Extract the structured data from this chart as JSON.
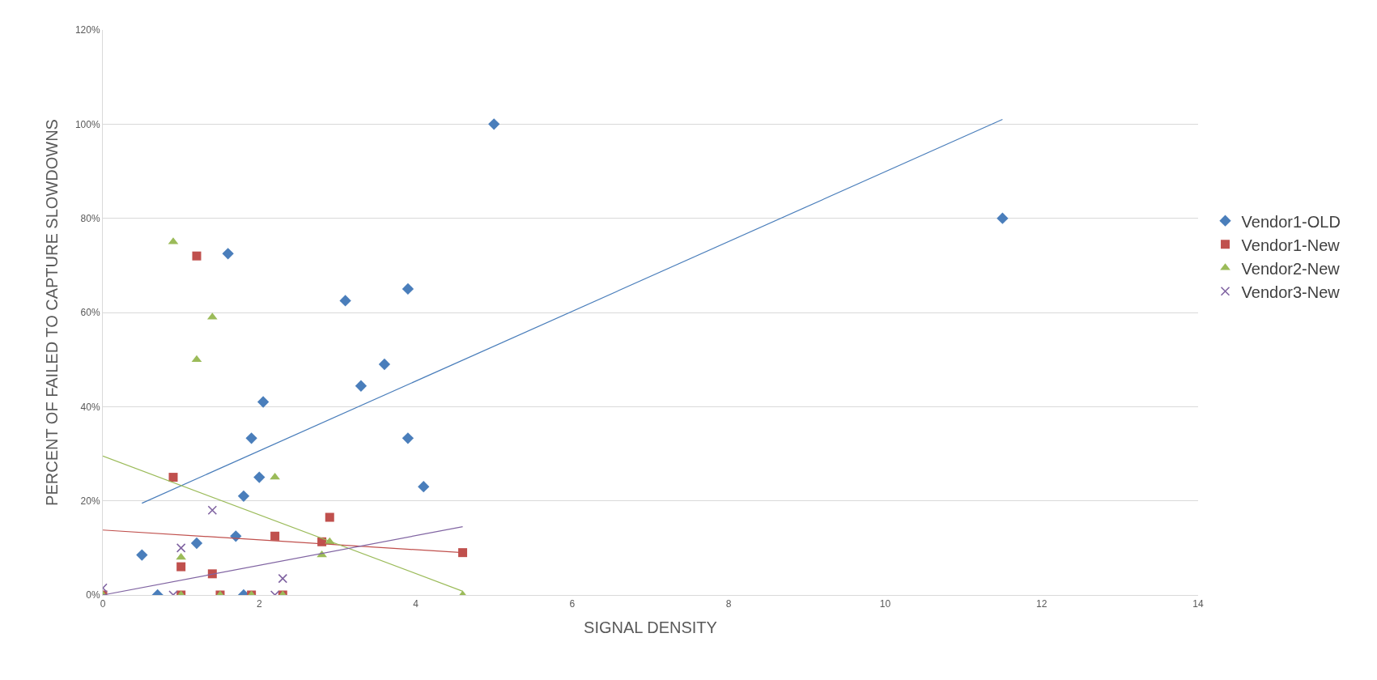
{
  "chart_data": {
    "type": "scatter",
    "xlabel": "SIGNAL DENSITY",
    "ylabel": "PERCENT OF FAILED TO CAPTURE SLOWDOWNS",
    "xlim": [
      0,
      14
    ],
    "xticks": [
      0,
      2,
      4,
      6,
      8,
      10,
      12,
      14
    ],
    "ylim": [
      0,
      120
    ],
    "yticks": [
      {
        "value": 0,
        "label": "0%"
      },
      {
        "value": 20,
        "label": "20%"
      },
      {
        "value": 40,
        "label": "40%"
      },
      {
        "value": 60,
        "label": "60%"
      },
      {
        "value": 80,
        "label": "80%"
      },
      {
        "value": 100,
        "label": "100%"
      },
      {
        "value": 120,
        "label": "120%"
      }
    ],
    "grid": "y",
    "legend": "right",
    "series": [
      {
        "name": "Vendor1-OLD",
        "color": "#4a7ebb",
        "marker": "diamond",
        "x": [
          0.5,
          0.7,
          1.2,
          1.6,
          1.7,
          1.8,
          1.8,
          1.9,
          2.0,
          2.05,
          3.1,
          3.3,
          3.6,
          3.9,
          3.9,
          4.1,
          5,
          11.5
        ],
        "values": [
          8.5,
          0,
          11,
          72.5,
          12.5,
          21,
          0,
          33.3,
          25,
          41,
          62.5,
          44.4,
          49,
          65,
          33.3,
          23,
          100,
          80
        ]
      },
      {
        "name": "Vendor1-New",
        "color": "#c0504d",
        "marker": "square",
        "x": [
          0,
          0.9,
          1.0,
          1.0,
          1.2,
          1.4,
          1.5,
          1.9,
          2.2,
          2.3,
          2.8,
          2.9,
          4.6
        ],
        "values": [
          0,
          25,
          6,
          0,
          72,
          4.5,
          0,
          0,
          12.5,
          0,
          11.3,
          16.5,
          9
        ]
      },
      {
        "name": "Vendor2-New",
        "color": "#9bbb59",
        "marker": "triangle",
        "x": [
          0,
          0.9,
          1.0,
          1.0,
          1.2,
          1.4,
          1.5,
          1.9,
          2.2,
          2.3,
          2.8,
          2.9,
          4.6
        ],
        "values": [
          0,
          75,
          8,
          0,
          50,
          59,
          0,
          0,
          25,
          0,
          8.5,
          11.3,
          0
        ]
      },
      {
        "name": "Vendor3-New",
        "color": "#8064a2",
        "marker": "cross",
        "x": [
          0,
          0.9,
          1.0,
          1.4,
          2.2,
          2.3
        ],
        "values": [
          1.5,
          0,
          10,
          18,
          0,
          3.5
        ]
      },
      {
        "type": "line",
        "color": "#4a7ebb",
        "x": [
          0.5,
          11.5
        ],
        "values": [
          19.5,
          101
        ]
      },
      {
        "type": "line",
        "color": "#c0504d",
        "x": [
          0,
          4.6
        ],
        "values": [
          13.8,
          9
        ]
      },
      {
        "type": "line",
        "color": "#9bbb59",
        "x": [
          0,
          4.6
        ],
        "values": [
          29.5,
          0.8
        ]
      },
      {
        "type": "line",
        "color": "#8064a2",
        "x": [
          0,
          4.6
        ],
        "values": [
          0,
          14.5
        ]
      }
    ]
  }
}
